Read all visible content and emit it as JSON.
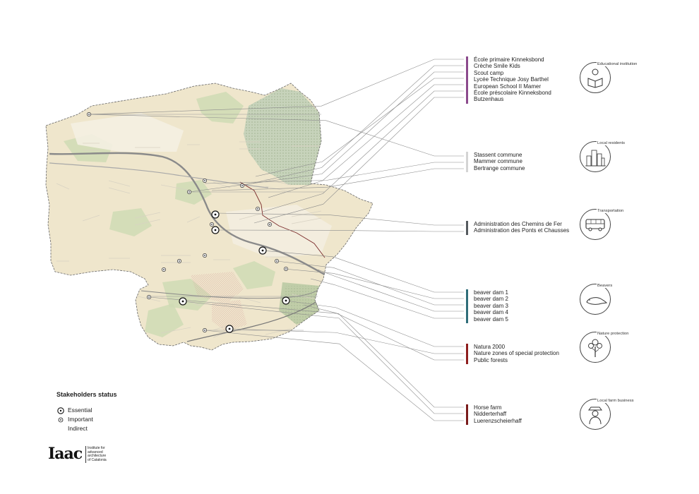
{
  "map": {
    "colors": {
      "base": "#efe6cc",
      "green": "#cfdbb4",
      "dark_green": "#b7c8a1",
      "forest": "#c7d3bb",
      "road": "#8a8a8a",
      "outline": "#666666",
      "leader": "#8b8b8b"
    }
  },
  "groups": [
    {
      "id": "educational",
      "color": "#8b4a8c",
      "items": [
        "École primaire Kinneksbond",
        "Crèche Smile Kids",
        "Scout camp",
        "Lycée Technique Josy Barthel",
        "European School II Mamer",
        "École préscolaire Kinneksbond",
        "Butzenhaus"
      ]
    },
    {
      "id": "local",
      "color": "#d4d4d4",
      "items": [
        "Stassent commune",
        "Mammer commune",
        "Bertrange commune"
      ]
    },
    {
      "id": "transport",
      "color": "#555a5f",
      "items": [
        "Administration des Chemins de Fer",
        "Administration des Ponts et Chausses"
      ]
    },
    {
      "id": "beavers",
      "color": "#2f6d79",
      "items": [
        "beaver dam 1",
        "beaver dam 2",
        "beaver dam 3",
        "beaver dam 4",
        "beaver dam 5"
      ]
    },
    {
      "id": "nature",
      "color": "#8e1e1e",
      "items": [
        "Natura 2000",
        "Nature zones of special protection",
        "Public forests"
      ]
    },
    {
      "id": "farm",
      "color": "#7a1c1c",
      "items": [
        "Horse farm",
        "Nidderterhaff",
        "Luerenzscheierhaff"
      ]
    }
  ],
  "categories": [
    {
      "id": "educational",
      "label": "Educational institution",
      "icon": "reading-person-icon"
    },
    {
      "id": "local",
      "label": "Local residents",
      "icon": "city-buildings-icon"
    },
    {
      "id": "transport",
      "label": "Transportation",
      "icon": "bus-icon"
    },
    {
      "id": "beavers",
      "label": "Beavers",
      "icon": "beaver-icon"
    },
    {
      "id": "nature",
      "label": "Nature protection",
      "icon": "tree-icon"
    },
    {
      "id": "farm",
      "label": "Local farm business",
      "icon": "farmer-icon"
    }
  ],
  "legend": {
    "title": "Stakeholders status",
    "essential": "Essential",
    "important": "Important",
    "indirect": "Indirect"
  },
  "logo": {
    "mark": "Iaac",
    "text": "Institute for\nadvanced\narchitecture\nof Catalonia"
  }
}
